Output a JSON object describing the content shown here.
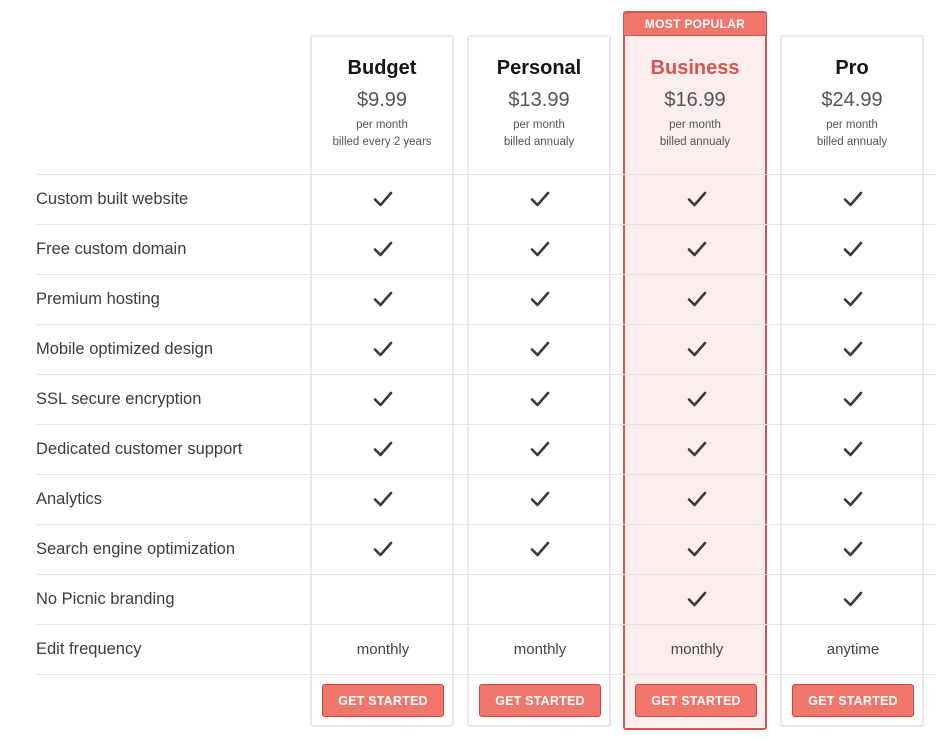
{
  "badge": "MOST POPULAR",
  "accent_color": "#f0756a",
  "featured_border_color": "#d9534f",
  "plans": [
    {
      "name": "Budget",
      "price": "$9.99",
      "period": "per month",
      "billing": "billed every 2 years",
      "cta": "GET STARTED"
    },
    {
      "name": "Personal",
      "price": "$13.99",
      "period": "per month",
      "billing": "billed annualy",
      "cta": "GET STARTED"
    },
    {
      "name": "Business",
      "price": "$16.99",
      "period": "per month",
      "billing": "billed annualy",
      "cta": "GET STARTED"
    },
    {
      "name": "Pro",
      "price": "$24.99",
      "period": "per month",
      "billing": "billed annualy",
      "cta": "GET STARTED"
    }
  ],
  "features": [
    {
      "label": "Custom built website",
      "included": [
        true,
        true,
        true,
        true
      ]
    },
    {
      "label": "Free custom domain",
      "included": [
        true,
        true,
        true,
        true
      ]
    },
    {
      "label": "Premium hosting",
      "included": [
        true,
        true,
        true,
        true
      ]
    },
    {
      "label": "Mobile optimized design",
      "included": [
        true,
        true,
        true,
        true
      ]
    },
    {
      "label": "SSL secure encryption",
      "included": [
        true,
        true,
        true,
        true
      ]
    },
    {
      "label": "Dedicated customer support",
      "included": [
        true,
        true,
        true,
        true
      ]
    },
    {
      "label": "Analytics",
      "included": [
        true,
        true,
        true,
        true
      ]
    },
    {
      "label": "Search engine optimization",
      "included": [
        true,
        true,
        true,
        true
      ]
    },
    {
      "label": "No Picnic branding",
      "included": [
        false,
        false,
        true,
        true
      ]
    }
  ],
  "edit_frequency": {
    "label": "Edit frequency",
    "values": [
      "monthly",
      "monthly",
      "monthly",
      "anytime"
    ]
  },
  "icons": {
    "check": "check-icon"
  }
}
